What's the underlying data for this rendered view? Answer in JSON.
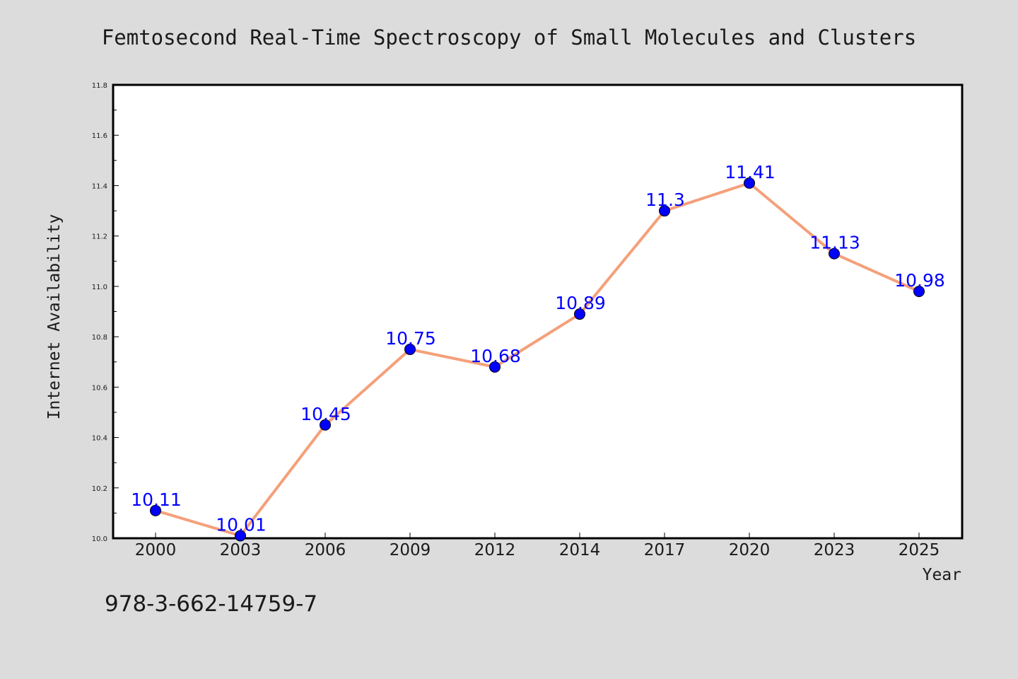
{
  "chart_data": {
    "type": "line",
    "title": "Femtosecond Real-Time Spectroscopy of Small Molecules and Clusters",
    "xlabel": "Year",
    "ylabel": "Internet Availability",
    "categories": [
      "2000",
      "2003",
      "2006",
      "2009",
      "2012",
      "2014",
      "2017",
      "2020",
      "2023",
      "2025"
    ],
    "series": [
      {
        "values": [
          10.11,
          10.01,
          10.45,
          10.75,
          10.68,
          10.89,
          11.3,
          11.41,
          11.13,
          10.98
        ],
        "labels": [
          "10.11",
          "10.01",
          "10.45",
          "10.75",
          "10.68",
          "10.89",
          "11.3",
          "11.41",
          "11.13",
          "10.98"
        ],
        "line_color": "#f4a07a",
        "marker_color": "#0000ff"
      }
    ],
    "ylim": [
      10.0,
      11.8
    ],
    "yticks": [
      "10.0",
      "10.2",
      "10.4",
      "10.6",
      "10.8",
      "11.0",
      "11.2",
      "11.4",
      "11.6",
      "11.8"
    ],
    "grid": false,
    "legend": "none"
  },
  "footer": {
    "isbn": "978-3-662-14759-7"
  },
  "colors": {
    "background": "#dcdcdc",
    "plot_background": "#ffffff",
    "line": "#f4a07a",
    "marker": "#0000ff",
    "data_label": "#0000ff"
  }
}
